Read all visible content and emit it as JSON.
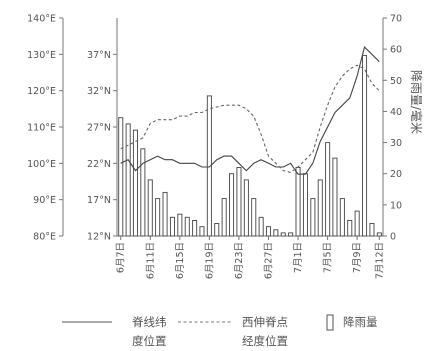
{
  "chart_data": {
    "type": "bar",
    "title": "",
    "y2label": "降雨量/毫米",
    "axes": {
      "longitude_ticks": [
        "80°E",
        "90°E",
        "100°E",
        "110°E",
        "120°E",
        "130°E",
        "140°E"
      ],
      "longitude_range_deg": [
        80,
        140
      ],
      "latitude_ticks": [
        "12°N",
        "17°N",
        "22°N",
        "27°N",
        "32°N",
        "37°N"
      ],
      "latitude_range_deg": [
        12,
        42
      ],
      "rainfall_ticks": [
        "0",
        "10",
        "20",
        "30",
        "40",
        "50",
        "60",
        "70"
      ],
      "rainfall_range_mm": [
        0,
        70
      ]
    },
    "x_tick_labels": [
      "6月7日",
      "6月11日",
      "6月15日",
      "6月19日",
      "6月23日",
      "6月27日",
      "7月1日",
      "7月5日",
      "7月9日",
      "7月12日"
    ],
    "x_tick_day_index": [
      0,
      4,
      8,
      12,
      16,
      20,
      24,
      28,
      32,
      35
    ],
    "day_count": 36,
    "series": [
      {
        "name": "降雨量",
        "kind": "bar",
        "unit": "mm",
        "values": [
          38,
          36,
          34,
          28,
          18,
          12,
          14,
          6,
          7,
          6,
          5,
          3,
          45,
          4,
          12,
          20,
          22,
          18,
          12,
          6,
          3,
          2,
          1,
          1,
          22,
          20,
          12,
          18,
          30,
          25,
          12,
          5,
          8,
          58,
          4,
          1
        ]
      },
      {
        "name": "脊线纬度位置",
        "kind": "line",
        "unit": "°N",
        "values": [
          22,
          22.5,
          21,
          22,
          22.5,
          23,
          22.5,
          22.5,
          22,
          22,
          22,
          21.5,
          21.5,
          22.5,
          23,
          23,
          22,
          21,
          22,
          22.5,
          22,
          21.5,
          21.5,
          22,
          20.5,
          20.5,
          22,
          25,
          27,
          29,
          30,
          31,
          34,
          38,
          37,
          36
        ]
      },
      {
        "name": "西伸脊点经度位置",
        "kind": "line",
        "unit": "°E",
        "values": [
          104,
          105,
          106,
          107,
          111,
          112,
          112,
          112,
          113,
          113,
          114,
          114,
          115,
          115.5,
          116,
          116,
          116,
          115,
          113,
          108,
          102,
          100,
          98,
          97.5,
          99,
          101,
          103,
          110,
          116,
          121,
          124,
          126,
          127,
          126,
          122,
          120
        ]
      }
    ]
  },
  "legend": {
    "ridge_line1": "脊线纬",
    "ridge_line2": "度位置",
    "west_line1": "西伸脊点",
    "west_line2": "经度位置",
    "rainfall": "降雨量"
  }
}
